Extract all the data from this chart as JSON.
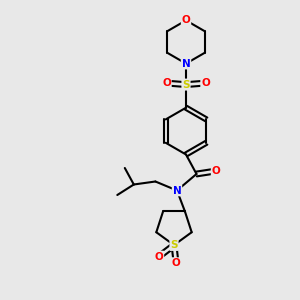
{
  "bg_color": "#e8e8e8",
  "atom_colors": {
    "C": "#000000",
    "N": "#0000ff",
    "O": "#ff0000",
    "S": "#cccc00"
  },
  "line_color": "#000000",
  "line_width": 1.5,
  "fontsize": 7.5,
  "fig_width": 3.0,
  "fig_height": 3.0,
  "dpi": 100
}
